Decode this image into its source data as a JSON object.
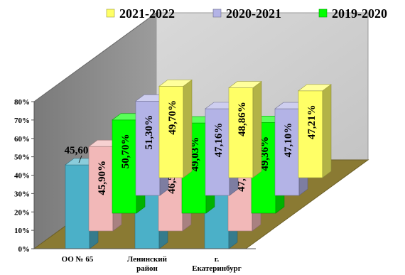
{
  "chart_data": {
    "type": "bar",
    "subtype": "3d-clustered-depth",
    "categories": [
      "ОО № 65",
      "Ленинский район",
      "г. Екатеринбург"
    ],
    "category_lines": [
      [
        "ОО № 65"
      ],
      [
        "Ленинский",
        "район"
      ],
      [
        "г.",
        "Екатеринбург"
      ]
    ],
    "series": [
      {
        "name": "2021-2022",
        "values": [
          49.7,
          48.86,
          47.21
        ],
        "labels": [
          "49,70%",
          "48,86%",
          "47,21%"
        ],
        "color": "#ffff66"
      },
      {
        "name": "2020-2021",
        "values": [
          51.3,
          47.16,
          47.1
        ],
        "labels": [
          "51,30%",
          "47,16%",
          "47,10%"
        ],
        "color": "#b3b3e6"
      },
      {
        "name": "2019-2020",
        "values": [
          50.7,
          49.03,
          49.36
        ],
        "labels": [
          "50,70%",
          "49,03%",
          "49,36%"
        ],
        "color": "#00ff00"
      },
      {
        "name": "",
        "values": [
          45.9,
          46.58,
          47.75
        ],
        "labels": [
          "45,90%",
          "46,58%",
          "47,75%"
        ],
        "color": "#f2b8b8"
      },
      {
        "name": "",
        "values": [
          45.6,
          46.09,
          47.61
        ],
        "labels": [
          "45,60%",
          "46,09%",
          "47,61%"
        ],
        "color": "#4bb0c8"
      }
    ],
    "yticks": [
      "0%",
      "10%",
      "20%",
      "30%",
      "40%",
      "50%",
      "60%",
      "70%",
      "80%"
    ],
    "ylim": [
      0,
      80
    ],
    "legend_series": [
      0,
      1,
      2
    ],
    "legend_position": "top",
    "grid": false
  }
}
